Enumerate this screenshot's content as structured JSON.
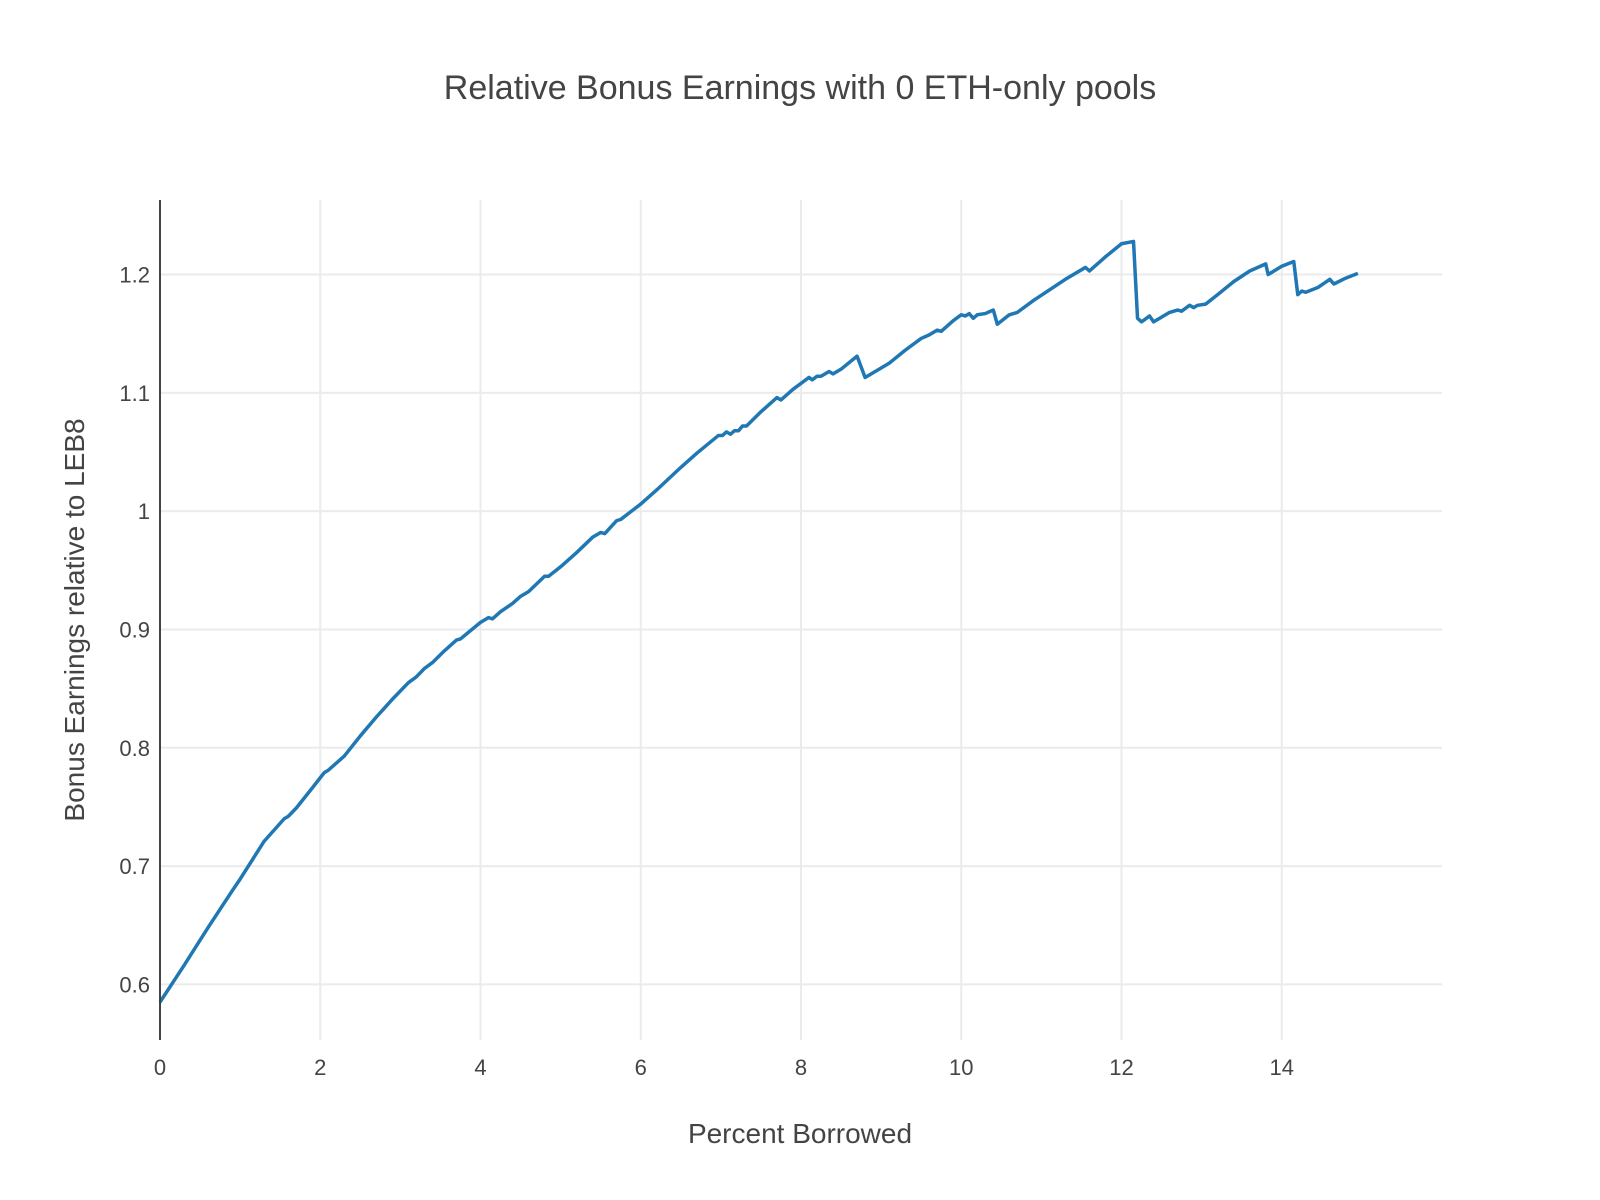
{
  "chart_data": {
    "type": "line",
    "title": "Relative Bonus Earnings with 0 ETH-only pools",
    "xlabel": "Percent Borrowed",
    "ylabel": "Bonus Earnings relative to LEB8",
    "xlim": [
      0,
      16
    ],
    "ylim": [
      0.553,
      1.263
    ],
    "x_ticks": [
      0,
      2,
      4,
      6,
      8,
      10,
      12,
      14
    ],
    "x_tick_labels": [
      "0",
      "2",
      "4",
      "6",
      "8",
      "10",
      "12",
      "14"
    ],
    "y_ticks": [
      0.6,
      0.7,
      0.8,
      0.9,
      1.0,
      1.1,
      1.2
    ],
    "y_tick_labels": [
      "0.6",
      "0.7",
      "0.8",
      "0.9",
      "1",
      "1.1",
      "1.2"
    ],
    "grid": true,
    "legend": "none",
    "colors": {
      "series": "#1f77b4",
      "grid": "#ebebeb",
      "text": "#444444"
    },
    "series": [
      {
        "x": [
          0.0,
          0.3,
          0.6,
          0.9,
          1.0,
          1.3,
          1.55,
          1.6,
          1.7,
          1.9,
          2.05,
          2.1,
          2.3,
          2.5,
          2.7,
          2.9,
          3.1,
          3.2,
          3.3,
          3.4,
          3.55,
          3.7,
          3.75,
          4.0,
          4.1,
          4.15,
          4.25,
          4.4,
          4.5,
          4.6,
          4.8,
          4.85,
          5.0,
          5.2,
          5.4,
          5.5,
          5.55,
          5.7,
          5.75,
          6.0,
          6.2,
          6.5,
          6.7,
          6.97,
          7.02,
          7.07,
          7.12,
          7.17,
          7.22,
          7.27,
          7.32,
          7.5,
          7.7,
          7.75,
          7.9,
          8.1,
          8.14,
          8.2,
          8.25,
          8.35,
          8.4,
          8.5,
          8.7,
          8.8,
          9.0,
          9.1,
          9.3,
          9.5,
          9.6,
          9.7,
          9.75,
          9.9,
          10.0,
          10.05,
          10.1,
          10.15,
          10.2,
          10.3,
          10.4,
          10.45,
          10.6,
          10.7,
          10.9,
          11.1,
          11.3,
          11.55,
          11.6,
          11.8,
          12.0,
          12.15,
          12.2,
          12.25,
          12.35,
          12.4,
          12.5,
          12.6,
          12.7,
          12.75,
          12.85,
          12.9,
          12.95,
          13.05,
          13.2,
          13.4,
          13.6,
          13.8,
          13.83,
          14.0,
          14.15,
          14.2,
          14.25,
          14.3,
          14.45,
          14.6,
          14.65,
          14.8,
          14.95
        ],
        "y": [
          0.585,
          0.616,
          0.648,
          0.679,
          0.689,
          0.721,
          0.74,
          0.742,
          0.749,
          0.766,
          0.779,
          0.781,
          0.793,
          0.81,
          0.826,
          0.841,
          0.855,
          0.86,
          0.867,
          0.872,
          0.882,
          0.891,
          0.892,
          0.906,
          0.91,
          0.909,
          0.915,
          0.922,
          0.928,
          0.932,
          0.945,
          0.945,
          0.953,
          0.965,
          0.978,
          0.982,
          0.981,
          0.992,
          0.993,
          1.006,
          1.018,
          1.037,
          1.049,
          1.064,
          1.064,
          1.067,
          1.065,
          1.068,
          1.068,
          1.072,
          1.072,
          1.084,
          1.096,
          1.094,
          1.103,
          1.113,
          1.111,
          1.114,
          1.114,
          1.118,
          1.116,
          1.12,
          1.131,
          1.113,
          1.121,
          1.125,
          1.136,
          1.146,
          1.149,
          1.153,
          1.152,
          1.161,
          1.166,
          1.165,
          1.167,
          1.163,
          1.166,
          1.167,
          1.17,
          1.158,
          1.166,
          1.168,
          1.178,
          1.187,
          1.196,
          1.206,
          1.203,
          1.215,
          1.226,
          1.228,
          1.163,
          1.16,
          1.165,
          1.16,
          1.164,
          1.168,
          1.17,
          1.169,
          1.174,
          1.172,
          1.174,
          1.175,
          1.183,
          1.194,
          1.203,
          1.209,
          1.2,
          1.207,
          1.211,
          1.183,
          1.186,
          1.185,
          1.189,
          1.196,
          1.192,
          1.197,
          1.201
        ]
      }
    ]
  }
}
